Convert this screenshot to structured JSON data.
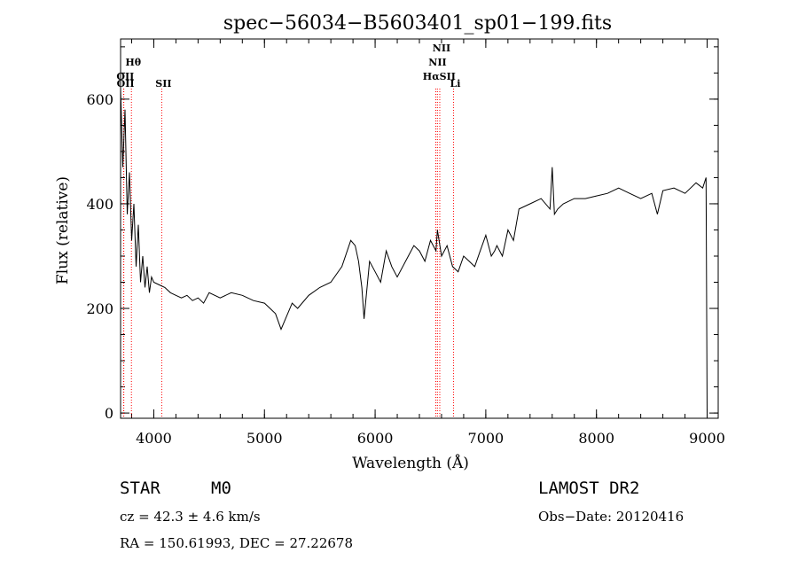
{
  "chart_data": {
    "type": "line",
    "title": "spec−56034−B5603401_sp01−199.fits",
    "xlabel": "Wavelength (Å)",
    "ylabel": "Flux (relative)",
    "xlim": [
      3700,
      9100
    ],
    "ylim": [
      -10,
      715
    ],
    "x_ticks": [
      4000,
      5000,
      6000,
      7000,
      8000,
      9000
    ],
    "y_ticks": [
      0,
      200,
      400,
      600
    ],
    "grid": false,
    "line_color": "#000000",
    "series": [
      {
        "name": "flux",
        "x": [
          3700,
          3720,
          3740,
          3760,
          3780,
          3800,
          3820,
          3840,
          3860,
          3880,
          3900,
          3920,
          3940,
          3960,
          3980,
          4000,
          4050,
          4100,
          4150,
          4200,
          4250,
          4300,
          4350,
          4400,
          4450,
          4500,
          4600,
          4700,
          4800,
          4900,
          5000,
          5100,
          5150,
          5200,
          5250,
          5300,
          5400,
          5500,
          5600,
          5700,
          5780,
          5820,
          5850,
          5880,
          5900,
          5950,
          6000,
          6050,
          6100,
          6150,
          6200,
          6300,
          6350,
          6400,
          6450,
          6500,
          6550,
          6563,
          6600,
          6650,
          6700,
          6750,
          6800,
          6850,
          6900,
          6950,
          7000,
          7050,
          7080,
          7100,
          7150,
          7200,
          7250,
          7300,
          7400,
          7500,
          7580,
          7600,
          7620,
          7650,
          7700,
          7800,
          7900,
          8000,
          8100,
          8200,
          8300,
          8400,
          8500,
          8550,
          8600,
          8700,
          8800,
          8900,
          8960,
          8990,
          8995,
          9000
        ],
        "y": [
          620,
          470,
          580,
          380,
          460,
          330,
          400,
          280,
          360,
          250,
          300,
          240,
          280,
          230,
          260,
          250,
          245,
          240,
          230,
          225,
          220,
          225,
          215,
          220,
          210,
          230,
          220,
          230,
          225,
          215,
          210,
          190,
          160,
          185,
          210,
          200,
          225,
          240,
          250,
          280,
          330,
          320,
          290,
          240,
          180,
          290,
          270,
          250,
          310,
          280,
          260,
          300,
          320,
          310,
          290,
          330,
          310,
          350,
          300,
          320,
          280,
          270,
          300,
          290,
          280,
          310,
          340,
          300,
          310,
          320,
          300,
          350,
          330,
          390,
          400,
          410,
          390,
          470,
          380,
          390,
          400,
          410,
          410,
          415,
          420,
          430,
          420,
          410,
          420,
          380,
          425,
          430,
          420,
          440,
          430,
          450,
          230,
          0
        ]
      }
    ],
    "emission_lines": [
      {
        "label": "Hθ",
        "x": 3798,
        "color": "#ff0000",
        "label_row": 1
      },
      {
        "label": "OII",
        "x": 3727,
        "color": "#ff0000",
        "label_row": 2
      },
      {
        "label": "OII",
        "x": 3729,
        "color": "#ff0000",
        "label_row": 3
      },
      {
        "label": "SII",
        "x": 4072,
        "color": "#ff0000",
        "label_row": 3
      },
      {
        "label": "NII",
        "x": 6548,
        "color": "#ff0000",
        "label_row": 1
      },
      {
        "label": "HαSII",
        "x": 6563,
        "color": "#ff0000",
        "label_row": 2
      },
      {
        "label": "NII",
        "x": 6584,
        "color": "#ff0000",
        "label_row": 0
      },
      {
        "label": "Li",
        "x": 6708,
        "color": "#ff0000",
        "label_row": 3
      }
    ]
  },
  "info": {
    "object_class": "STAR",
    "subclass": "M0",
    "cz": "cz = 42.3 ± 4.6 km/s",
    "coords": "RA = 150.61993, DEC =  27.22678",
    "survey": "LAMOST DR2",
    "obs_date": "Obs−Date: 20120416"
  }
}
